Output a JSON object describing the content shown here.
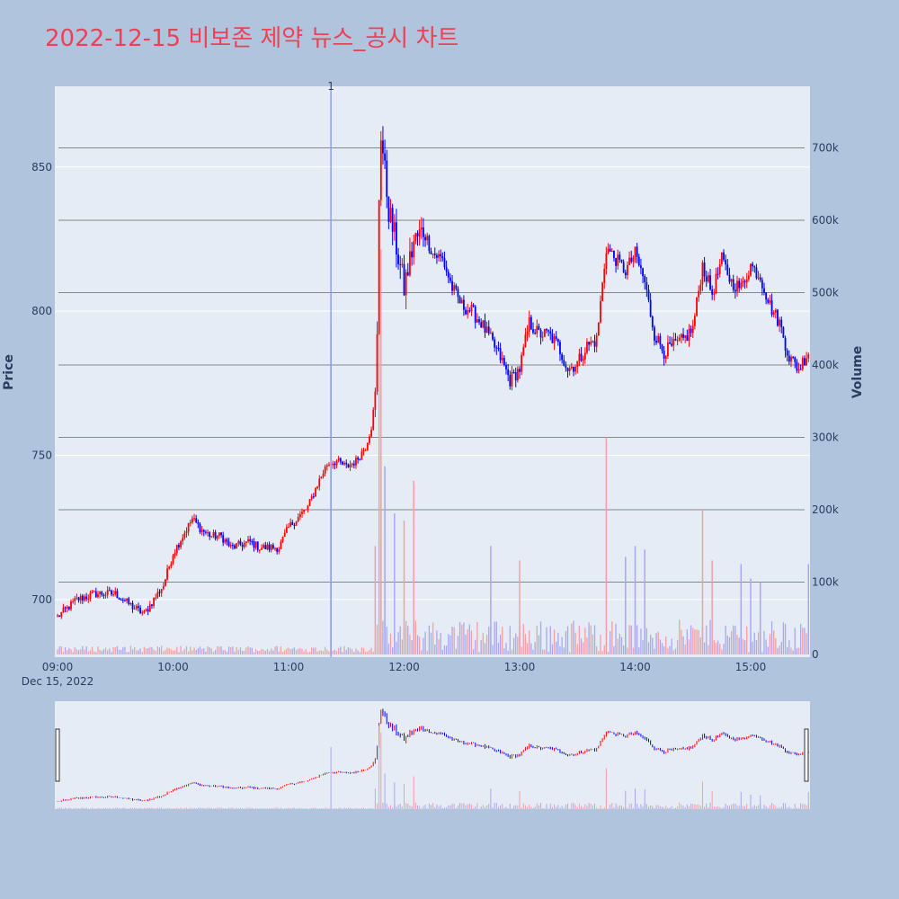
{
  "title": "2022-12-15 비보존 제약 뉴스_공시 차트",
  "colors": {
    "background": "#b0c4de",
    "plot_bg": "#e5ecf6",
    "title": "#ef4056",
    "up": "#ff0000",
    "down": "#0000ff",
    "grid": "#ffffff",
    "volume_grid": "#888888",
    "axis_text": "#2a3f5f"
  },
  "chart_data": {
    "type": "candlestick",
    "xlabel": "",
    "ylabel": "Price",
    "y2label": "Volume",
    "ylim": [
      680,
      878
    ],
    "y2lim": [
      0,
      790000
    ],
    "x_ticks": [
      {
        "time": "09:00",
        "label": "09:00",
        "sublabel": "Dec 15, 2022"
      },
      {
        "time": "10:00",
        "label": "10:00"
      },
      {
        "time": "11:00",
        "label": "11:00"
      },
      {
        "time": "12:00",
        "label": "12:00"
      },
      {
        "time": "13:00",
        "label": "13:00"
      },
      {
        "time": "14:00",
        "label": "14:00"
      },
      {
        "time": "15:00",
        "label": "15:00"
      }
    ],
    "y_ticks": [
      700,
      750,
      800,
      850
    ],
    "y2_ticks": [
      {
        "value": 0,
        "label": "0"
      },
      {
        "value": 100000,
        "label": "100k"
      },
      {
        "value": 200000,
        "label": "200k"
      },
      {
        "value": 300000,
        "label": "300k"
      },
      {
        "value": 400000,
        "label": "400k"
      },
      {
        "value": 500000,
        "label": "500k"
      },
      {
        "value": 600000,
        "label": "600k"
      },
      {
        "value": 700000,
        "label": "700k"
      }
    ],
    "annotation": {
      "time": "11:22",
      "label": "1"
    },
    "x_range": [
      "09:00",
      "15:30"
    ],
    "keypoints": [
      [
        "09:00",
        694
      ],
      [
        "09:05",
        697
      ],
      [
        "09:10",
        700
      ],
      [
        "09:20",
        702
      ],
      [
        "09:30",
        702
      ],
      [
        "09:40",
        697
      ],
      [
        "09:45",
        695
      ],
      [
        "09:50",
        700
      ],
      [
        "09:55",
        705
      ],
      [
        "10:00",
        716
      ],
      [
        "10:05",
        722
      ],
      [
        "10:10",
        728
      ],
      [
        "10:15",
        724
      ],
      [
        "10:20",
        722
      ],
      [
        "10:25",
        722
      ],
      [
        "10:30",
        718
      ],
      [
        "10:40",
        720
      ],
      [
        "10:45",
        718
      ],
      [
        "10:55",
        718
      ],
      [
        "11:00",
        725
      ],
      [
        "11:10",
        732
      ],
      [
        "11:15",
        740
      ],
      [
        "11:20",
        747
      ],
      [
        "11:25",
        748
      ],
      [
        "11:30",
        746
      ],
      [
        "11:35",
        748
      ],
      [
        "11:40",
        753
      ],
      [
        "11:43",
        760
      ],
      [
        "11:45",
        770
      ],
      [
        "11:46",
        790
      ],
      [
        "11:47",
        840
      ],
      [
        "11:48",
        862
      ],
      [
        "11:50",
        848
      ],
      [
        "11:52",
        835
      ],
      [
        "11:55",
        826
      ],
      [
        "12:00",
        808
      ],
      [
        "12:05",
        824
      ],
      [
        "12:10",
        828
      ],
      [
        "12:15",
        820
      ],
      [
        "12:20",
        818
      ],
      [
        "12:25",
        808
      ],
      [
        "12:30",
        802
      ],
      [
        "12:35",
        800
      ],
      [
        "12:40",
        796
      ],
      [
        "12:45",
        790
      ],
      [
        "12:50",
        784
      ],
      [
        "12:55",
        776
      ],
      [
        "13:00",
        780
      ],
      [
        "13:05",
        796
      ],
      [
        "13:10",
        792
      ],
      [
        "13:15",
        792
      ],
      [
        "13:20",
        788
      ],
      [
        "13:25",
        780
      ],
      [
        "13:30",
        782
      ],
      [
        "13:35",
        788
      ],
      [
        "13:40",
        790
      ],
      [
        "13:45",
        822
      ],
      [
        "13:50",
        818
      ],
      [
        "13:55",
        814
      ],
      [
        "14:00",
        820
      ],
      [
        "14:05",
        810
      ],
      [
        "14:10",
        792
      ],
      [
        "14:15",
        786
      ],
      [
        "14:20",
        788
      ],
      [
        "14:25",
        790
      ],
      [
        "14:30",
        794
      ],
      [
        "14:35",
        816
      ],
      [
        "14:40",
        806
      ],
      [
        "14:45",
        818
      ],
      [
        "14:50",
        810
      ],
      [
        "14:55",
        808
      ],
      [
        "15:00",
        816
      ],
      [
        "15:05",
        812
      ],
      [
        "15:10",
        802
      ],
      [
        "15:15",
        796
      ],
      [
        "15:20",
        784
      ],
      [
        "15:25",
        780
      ],
      [
        "15:30",
        786
      ]
    ],
    "volume_spikes": [
      [
        "11:22",
        455000,
        "down"
      ],
      [
        "11:45",
        150000,
        "up"
      ],
      [
        "11:47",
        610000,
        "up"
      ],
      [
        "11:48",
        560000,
        "up"
      ],
      [
        "11:50",
        260000,
        "down"
      ],
      [
        "11:55",
        195000,
        "down"
      ],
      [
        "12:00",
        185000,
        "up"
      ],
      [
        "12:05",
        240000,
        "up"
      ],
      [
        "12:45",
        150000,
        "down"
      ],
      [
        "13:00",
        130000,
        "up"
      ],
      [
        "13:45",
        300000,
        "up"
      ],
      [
        "13:55",
        135000,
        "down"
      ],
      [
        "14:00",
        150000,
        "down"
      ],
      [
        "14:05",
        145000,
        "down"
      ],
      [
        "14:35",
        200000,
        "up"
      ],
      [
        "14:40",
        130000,
        "up"
      ],
      [
        "14:55",
        125000,
        "down"
      ],
      [
        "15:00",
        105000,
        "down"
      ],
      [
        "15:05",
        100000,
        "down"
      ],
      [
        "15:30",
        125000,
        "down"
      ]
    ],
    "range_slider": true
  }
}
